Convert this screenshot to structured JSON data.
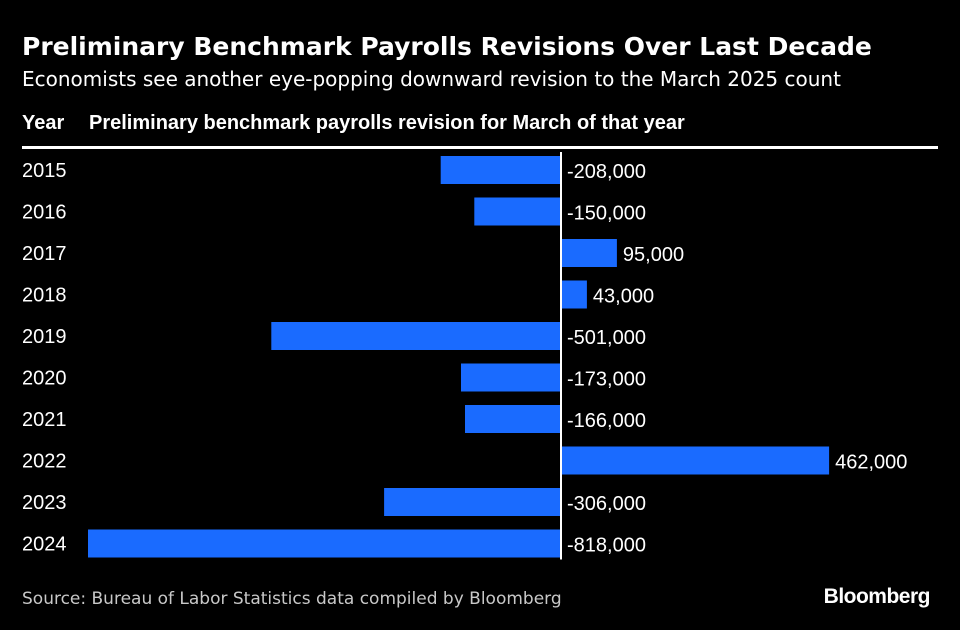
{
  "header": {
    "title": "Preliminary Benchmark Payrolls Revisions Over Last Decade",
    "subtitle": "Economists see another eye-popping downward revision to the March 2025 count"
  },
  "columns": {
    "year_label": "Year",
    "value_label": "Preliminary benchmark payrolls revision for March of that year"
  },
  "footer": {
    "source": "Source: Bureau of Labor Statistics data compiled by Bloomberg",
    "brand": "Bloomberg"
  },
  "colors": {
    "background": "#000000",
    "bar": "#1a6bff",
    "text": "#ffffff",
    "source_text": "#c8c8c8"
  },
  "chart_data": {
    "type": "bar",
    "orientation": "horizontal",
    "categories": [
      "2015",
      "2016",
      "2017",
      "2018",
      "2019",
      "2020",
      "2021",
      "2022",
      "2023",
      "2024"
    ],
    "values": [
      -208000,
      -150000,
      95000,
      43000,
      -501000,
      -173000,
      -166000,
      462000,
      -306000,
      -818000
    ],
    "labels": [
      "-208,000",
      "-150,000",
      "95,000",
      "43,000",
      "-501,000",
      "-173,000",
      "-166,000",
      "462,000",
      "-306,000",
      "-818,000"
    ],
    "xlim": [
      -818000,
      470000
    ],
    "grid": false,
    "legend": "none"
  }
}
